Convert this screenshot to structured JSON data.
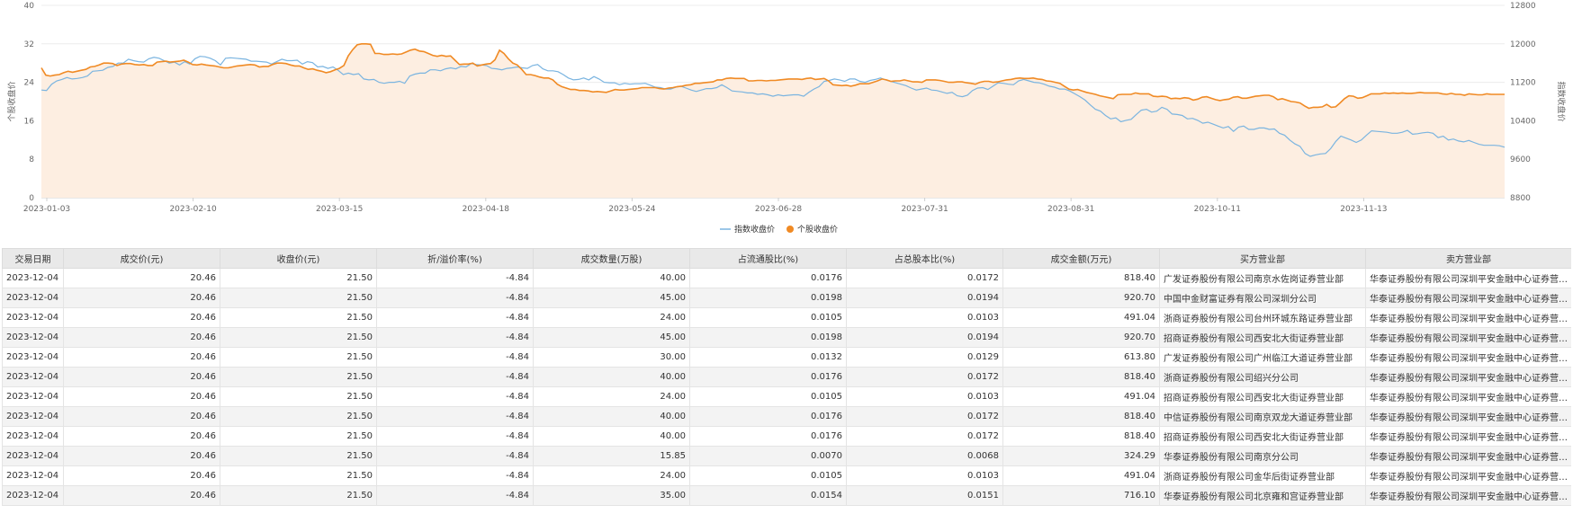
{
  "chart_data": {
    "type": "line",
    "x_ticks": [
      "2023-01-03",
      "2023-02-10",
      "2023-03-15",
      "2023-04-18",
      "2023-05-24",
      "2023-06-28",
      "2023-07-31",
      "2023-08-31",
      "2023-10-11",
      "2023-11-13"
    ],
    "y_left": {
      "label": "个股收盘价",
      "ticks": [
        0,
        8,
        16,
        24,
        32,
        40
      ],
      "range": [
        0,
        40
      ]
    },
    "y_right": {
      "label": "指数收盘价",
      "ticks": [
        8800,
        9600,
        10400,
        11200,
        12000,
        12800
      ],
      "range": [
        8800,
        12800
      ]
    },
    "legend_position": "bottom",
    "series": [
      {
        "name": "指数收盘价",
        "axis": "right",
        "color": "#7ab4e0",
        "values": [
          11040,
          11030,
          11160,
          11230,
          11260,
          11300,
          11270,
          11280,
          11300,
          11330,
          11430,
          11440,
          11450,
          11510,
          11530,
          11600,
          11600,
          11680,
          11650,
          11630,
          11620,
          11690,
          11720,
          11700,
          11650,
          11600,
          11620,
          11560,
          11630,
          11580,
          11690,
          11740,
          11730,
          11700,
          11650,
          11560,
          11700,
          11710,
          11700,
          11690,
          11680,
          11640,
          11640,
          11630,
          11620,
          11580,
          11630,
          11680,
          11650,
          11650,
          11660,
          11580,
          11630,
          11610,
          11520,
          11530,
          11490,
          11520,
          11450,
          11360,
          11390,
          11360,
          11380,
          11270,
          11250,
          11260,
          11200,
          11180,
          11200,
          11200,
          11220,
          11180,
          11330,
          11370,
          11390,
          11390,
          11460,
          11460,
          11440,
          11480,
          11500,
          11480,
          11530,
          11520,
          11590,
          11570,
          11560,
          11550,
          11490,
          11480,
          11460,
          11490,
          11500,
          11520,
          11500,
          11490,
          11550,
          11570,
          11480,
          11440,
          11440,
          11420,
          11360,
          11290,
          11250,
          11260,
          11290,
          11250,
          11320,
          11270,
          11200,
          11190,
          11190,
          11150,
          11180,
          11160,
          11170,
          11170,
          11180,
          11140,
          11100,
          11090,
          11060,
          11060,
          11100,
          11120,
          11080,
          11040,
          11010,
          11040,
          11070,
          11070,
          11090,
          11150,
          11090,
          11020,
          11010,
          11000,
          10980,
          10980,
          10950,
          10960,
          10940,
          10910,
          10940,
          10920,
          10930,
          10940,
          10940,
          10910,
          10990,
          11060,
          11110,
          11220,
          11240,
          11270,
          11250,
          11220,
          11270,
          11270,
          11220,
          11200,
          11240,
          11260,
          11290,
          11250,
          11220,
          11190,
          11160,
          11130,
          11080,
          11040,
          11060,
          11080,
          11040,
          11030,
          11000,
          10970,
          10990,
          10920,
          10900,
          10930,
          11030,
          11080,
          11090,
          11050,
          11120,
          11190,
          11180,
          11160,
          11150,
          11230,
          11260,
          11230,
          11200,
          11190,
          11160,
          11120,
          11100,
          11060,
          11060,
          11020,
          10960,
          10900,
          10830,
          10730,
          10640,
          10600,
          10510,
          10440,
          10460,
          10380,
          10410,
          10430,
          10530,
          10620,
          10640,
          10580,
          10600,
          10680,
          10640,
          10540,
          10530,
          10510,
          10440,
          10450,
          10410,
          10350,
          10370,
          10330,
          10290,
          10250,
          10280,
          10180,
          10270,
          10290,
          10220,
          10220,
          10250,
          10250,
          10220,
          10230,
          10140,
          10100,
          10000,
          9920,
          9870,
          9720,
          9660,
          9690,
          9710,
          9720,
          9820,
          9970,
          10080,
          10040,
          10000,
          9950,
          10000,
          10100,
          10190,
          10180,
          10170,
          10160,
          10140,
          10140,
          10160,
          10200,
          10120,
          10130,
          10150,
          10160,
          10140,
          10050,
          10080,
          10000,
          10020,
          9980,
          9960,
          9990,
          9950,
          9910,
          9890,
          9890,
          9890,
          9880,
          9850
        ]
      },
      {
        "name": "个股收盘价",
        "axis": "left",
        "color": "#f08a24",
        "values": [
          27.0,
          25.5,
          25.3,
          25.5,
          25.6,
          26.0,
          26.3,
          26.1,
          26.3,
          26.5,
          26.7,
          27.2,
          27.3,
          27.6,
          28.0,
          28.0,
          27.9,
          27.5,
          27.8,
          27.9,
          27.9,
          27.7,
          27.6,
          27.7,
          27.5,
          27.5,
          28.2,
          28.3,
          28.4,
          28.2,
          28.3,
          28.4,
          28.6,
          28.2,
          27.7,
          27.6,
          27.8,
          27.6,
          27.5,
          27.4,
          27.2,
          27.0,
          27.0,
          27.2,
          27.4,
          27.5,
          27.6,
          27.7,
          27.6,
          27.2,
          27.3,
          27.3,
          27.7,
          28.0,
          28.0,
          27.9,
          27.6,
          27.4,
          27.4,
          27.0,
          26.7,
          26.8,
          26.5,
          26.3,
          26.0,
          26.2,
          26.6,
          26.9,
          27.5,
          29.5,
          30.8,
          31.8,
          32.0,
          32.0,
          31.9,
          30.0,
          30.0,
          29.8,
          29.8,
          29.9,
          29.8,
          29.9,
          30.3,
          30.7,
          30.9,
          30.5,
          30.4,
          30.0,
          29.6,
          29.4,
          29.6,
          29.4,
          29.5,
          28.6,
          27.7,
          27.8,
          27.8,
          28.0,
          27.4,
          27.6,
          27.8,
          27.9,
          28.7,
          30.7,
          30.0,
          28.9,
          28.0,
          27.6,
          26.7,
          25.6,
          25.6,
          25.4,
          25.1,
          24.9,
          24.9,
          24.5,
          23.6,
          23.1,
          22.8,
          22.5,
          22.5,
          22.3,
          22.3,
          22.2,
          22.0,
          22.1,
          22.0,
          21.9,
          22.2,
          22.5,
          22.4,
          22.4,
          22.5,
          22.6,
          22.7,
          22.9,
          22.9,
          22.9,
          22.9,
          22.7,
          22.6,
          22.8,
          22.9,
          23.1,
          23.2,
          23.4,
          23.5,
          23.8,
          23.8,
          23.9,
          24.0,
          24.1,
          24.5,
          24.5,
          24.8,
          24.9,
          24.8,
          24.8,
          24.8,
          24.3,
          24.3,
          24.4,
          24.4,
          24.3,
          24.4,
          24.4,
          24.5,
          24.6,
          24.7,
          24.7,
          24.7,
          24.6,
          24.8,
          24.9,
          24.6,
          24.7,
          24.8,
          24.3,
          23.5,
          23.4,
          23.3,
          23.4,
          23.2,
          23.4,
          23.7,
          23.7,
          23.7,
          24.0,
          24.3,
          24.7,
          24.5,
          24.2,
          24.3,
          24.3,
          24.5,
          24.3,
          24.1,
          24.1,
          24.0,
          24.5,
          24.5,
          24.5,
          24.4,
          24.2,
          24.0,
          24.0,
          24.1,
          24.1,
          23.9,
          23.8,
          23.6,
          24.0,
          24.2,
          24.2,
          24.0,
          24.1,
          24.3,
          24.5,
          24.6,
          24.8,
          24.9,
          24.8,
          24.8,
          24.9,
          24.7,
          24.6,
          24.3,
          24.2,
          24.0,
          23.8,
          23.2,
          22.6,
          22.4,
          22.5,
          22.2,
          21.9,
          21.7,
          21.5,
          21.2,
          21.0,
          20.8,
          20.6,
          21.4,
          21.5,
          21.5,
          21.5,
          21.8,
          21.6,
          21.6,
          21.6,
          21.1,
          21.0,
          21.1,
          21.0,
          20.6,
          20.7,
          20.6,
          20.8,
          20.7,
          20.3,
          20.5,
          20.9,
          21.0,
          20.7,
          20.4,
          20.2,
          20.4,
          20.5,
          20.9,
          21.0,
          20.7,
          20.7,
          20.9,
          21.1,
          21.2,
          21.3,
          21.3,
          21.0,
          20.4,
          20.6,
          20.3,
          20.0,
          19.9,
          19.7,
          19.1,
          18.6,
          18.8,
          18.8,
          18.9,
          19.4,
          18.8,
          18.9,
          19.7,
          20.6,
          21.2,
          21.1,
          20.7,
          20.8,
          21.2,
          21.6,
          21.6,
          21.6,
          21.8,
          21.7,
          21.8,
          21.7,
          21.8,
          21.7,
          21.7,
          21.8,
          21.9,
          21.8,
          21.8,
          21.8,
          21.8,
          21.6,
          21.5,
          21.7,
          21.5,
          21.5,
          21.3,
          21.6,
          21.5,
          21.4,
          21.4,
          21.6,
          21.5,
          21.5,
          21.5,
          21.5
        ]
      }
    ]
  },
  "table": {
    "headers": [
      "交易日期",
      "成交价(元)",
      "收盘价(元)",
      "折/溢价率(%)",
      "成交数量(万股)",
      "占流通股比(%)",
      "占总股本比(%)",
      "成交金额(万元)",
      "买方营业部",
      "卖方营业部"
    ],
    "rows": [
      [
        "2023-12-04",
        "20.46",
        "21.50",
        "-4.84",
        "40.00",
        "0.0176",
        "0.0172",
        "818.40",
        "广发证券股份有限公司南京水佐岗证券营业部",
        "华泰证券股份有限公司深圳平安金融中心证券营业部"
      ],
      [
        "2023-12-04",
        "20.46",
        "21.50",
        "-4.84",
        "45.00",
        "0.0198",
        "0.0194",
        "920.70",
        "中国中金财富证券有限公司深圳分公司",
        "华泰证券股份有限公司深圳平安金融中心证券营业部"
      ],
      [
        "2023-12-04",
        "20.46",
        "21.50",
        "-4.84",
        "24.00",
        "0.0105",
        "0.0103",
        "491.04",
        "浙商证券股份有限公司台州环城东路证券营业部",
        "华泰证券股份有限公司深圳平安金融中心证券营业部"
      ],
      [
        "2023-12-04",
        "20.46",
        "21.50",
        "-4.84",
        "45.00",
        "0.0198",
        "0.0194",
        "920.70",
        "招商证券股份有限公司西安北大街证券营业部",
        "华泰证券股份有限公司深圳平安金融中心证券营业部"
      ],
      [
        "2023-12-04",
        "20.46",
        "21.50",
        "-4.84",
        "30.00",
        "0.0132",
        "0.0129",
        "613.80",
        "广发证券股份有限公司广州临江大道证券营业部",
        "华泰证券股份有限公司深圳平安金融中心证券营业部"
      ],
      [
        "2023-12-04",
        "20.46",
        "21.50",
        "-4.84",
        "40.00",
        "0.0176",
        "0.0172",
        "818.40",
        "浙商证券股份有限公司绍兴分公司",
        "华泰证券股份有限公司深圳平安金融中心证券营业部"
      ],
      [
        "2023-12-04",
        "20.46",
        "21.50",
        "-4.84",
        "24.00",
        "0.0105",
        "0.0103",
        "491.04",
        "招商证券股份有限公司西安北大街证券营业部",
        "华泰证券股份有限公司深圳平安金融中心证券营业部"
      ],
      [
        "2023-12-04",
        "20.46",
        "21.50",
        "-4.84",
        "40.00",
        "0.0176",
        "0.0172",
        "818.40",
        "中信证券股份有限公司南京双龙大道证券营业部",
        "华泰证券股份有限公司深圳平安金融中心证券营业部"
      ],
      [
        "2023-12-04",
        "20.46",
        "21.50",
        "-4.84",
        "40.00",
        "0.0176",
        "0.0172",
        "818.40",
        "招商证券股份有限公司西安北大街证券营业部",
        "华泰证券股份有限公司深圳平安金融中心证券营业部"
      ],
      [
        "2023-12-04",
        "20.46",
        "21.50",
        "-4.84",
        "15.85",
        "0.0070",
        "0.0068",
        "324.29",
        "华泰证券股份有限公司南京分公司",
        "华泰证券股份有限公司深圳平安金融中心证券营业部"
      ],
      [
        "2023-12-04",
        "20.46",
        "21.50",
        "-4.84",
        "24.00",
        "0.0105",
        "0.0103",
        "491.04",
        "浙商证券股份有限公司金华后街证券营业部",
        "华泰证券股份有限公司深圳平安金融中心证券营业部"
      ],
      [
        "2023-12-04",
        "20.46",
        "21.50",
        "-4.84",
        "35.00",
        "0.0154",
        "0.0151",
        "716.10",
        "华泰证券股份有限公司北京雍和宫证券营业部",
        "华泰证券股份有限公司深圳平安金融中心证券营业部"
      ]
    ]
  },
  "colors": {
    "index_line": "#7ab4e0",
    "stock_line": "#f08a24",
    "area_fill": "#fdeee1"
  }
}
